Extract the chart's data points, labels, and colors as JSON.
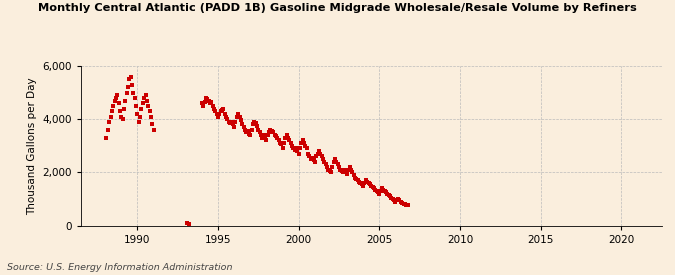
{
  "title": "Monthly Central Atlantic (PADD 1B) Gasoline Midgrade Wholesale/Resale Volume by Refiners",
  "ylabel": "Thousand Gallons per Day",
  "source": "Source: U.S. Energy Information Administration",
  "background_color": "#faeedd",
  "marker_color": "#cc0000",
  "xlim": [
    1986.5,
    2022.5
  ],
  "ylim": [
    0,
    6000
  ],
  "yticks": [
    0,
    2000,
    4000,
    6000
  ],
  "xticks": [
    1990,
    1995,
    2000,
    2005,
    2010,
    2015,
    2020
  ],
  "data_points": [
    [
      1988.08,
      3300
    ],
    [
      1988.17,
      3600
    ],
    [
      1988.25,
      3900
    ],
    [
      1988.33,
      4100
    ],
    [
      1988.42,
      4300
    ],
    [
      1988.5,
      4500
    ],
    [
      1988.58,
      4700
    ],
    [
      1988.67,
      4800
    ],
    [
      1988.75,
      4900
    ],
    [
      1988.83,
      4600
    ],
    [
      1988.92,
      4300
    ],
    [
      1989.0,
      4100
    ],
    [
      1989.08,
      4000
    ],
    [
      1989.17,
      4400
    ],
    [
      1989.25,
      4700
    ],
    [
      1989.33,
      5000
    ],
    [
      1989.42,
      5200
    ],
    [
      1989.5,
      5500
    ],
    [
      1989.58,
      5600
    ],
    [
      1989.67,
      5300
    ],
    [
      1989.75,
      5000
    ],
    [
      1989.83,
      4800
    ],
    [
      1989.92,
      4500
    ],
    [
      1990.0,
      4200
    ],
    [
      1990.08,
      3900
    ],
    [
      1990.17,
      4100
    ],
    [
      1990.25,
      4400
    ],
    [
      1990.33,
      4600
    ],
    [
      1990.42,
      4800
    ],
    [
      1990.5,
      4900
    ],
    [
      1990.58,
      4700
    ],
    [
      1990.67,
      4500
    ],
    [
      1990.75,
      4300
    ],
    [
      1990.83,
      4100
    ],
    [
      1990.92,
      3800
    ],
    [
      1991.0,
      3600
    ],
    [
      1993.08,
      100
    ],
    [
      1993.17,
      50
    ],
    [
      1994.0,
      4600
    ],
    [
      1994.08,
      4500
    ],
    [
      1994.17,
      4650
    ],
    [
      1994.25,
      4800
    ],
    [
      1994.33,
      4750
    ],
    [
      1994.42,
      4700
    ],
    [
      1994.5,
      4600
    ],
    [
      1994.58,
      4650
    ],
    [
      1994.67,
      4500
    ],
    [
      1994.75,
      4400
    ],
    [
      1994.83,
      4300
    ],
    [
      1994.92,
      4200
    ],
    [
      1995.0,
      4100
    ],
    [
      1995.08,
      4200
    ],
    [
      1995.17,
      4300
    ],
    [
      1995.25,
      4350
    ],
    [
      1995.33,
      4400
    ],
    [
      1995.42,
      4200
    ],
    [
      1995.5,
      4100
    ],
    [
      1995.58,
      4000
    ],
    [
      1995.67,
      3900
    ],
    [
      1995.75,
      3850
    ],
    [
      1995.83,
      3900
    ],
    [
      1995.92,
      3800
    ],
    [
      1996.0,
      3700
    ],
    [
      1996.08,
      3900
    ],
    [
      1996.17,
      4100
    ],
    [
      1996.25,
      4200
    ],
    [
      1996.33,
      4100
    ],
    [
      1996.42,
      3950
    ],
    [
      1996.5,
      3800
    ],
    [
      1996.58,
      3700
    ],
    [
      1996.67,
      3600
    ],
    [
      1996.75,
      3500
    ],
    [
      1996.83,
      3550
    ],
    [
      1996.92,
      3450
    ],
    [
      1997.0,
      3400
    ],
    [
      1997.08,
      3600
    ],
    [
      1997.17,
      3800
    ],
    [
      1997.25,
      3900
    ],
    [
      1997.33,
      3850
    ],
    [
      1997.42,
      3750
    ],
    [
      1997.5,
      3600
    ],
    [
      1997.58,
      3500
    ],
    [
      1997.67,
      3400
    ],
    [
      1997.75,
      3300
    ],
    [
      1997.83,
      3400
    ],
    [
      1997.92,
      3300
    ],
    [
      1998.0,
      3200
    ],
    [
      1998.08,
      3400
    ],
    [
      1998.17,
      3500
    ],
    [
      1998.25,
      3600
    ],
    [
      1998.33,
      3550
    ],
    [
      1998.42,
      3500
    ],
    [
      1998.5,
      3400
    ],
    [
      1998.58,
      3350
    ],
    [
      1998.67,
      3300
    ],
    [
      1998.75,
      3200
    ],
    [
      1998.83,
      3100
    ],
    [
      1998.92,
      3050
    ],
    [
      1999.0,
      2900
    ],
    [
      1999.08,
      3100
    ],
    [
      1999.17,
      3300
    ],
    [
      1999.25,
      3400
    ],
    [
      1999.33,
      3300
    ],
    [
      1999.42,
      3200
    ],
    [
      1999.5,
      3100
    ],
    [
      1999.58,
      3000
    ],
    [
      1999.67,
      2900
    ],
    [
      1999.75,
      2850
    ],
    [
      1999.83,
      2900
    ],
    [
      1999.92,
      2800
    ],
    [
      2000.0,
      2700
    ],
    [
      2000.08,
      2900
    ],
    [
      2000.17,
      3100
    ],
    [
      2000.25,
      3200
    ],
    [
      2000.33,
      3100
    ],
    [
      2000.42,
      3000
    ],
    [
      2000.5,
      2900
    ],
    [
      2000.58,
      2700
    ],
    [
      2000.67,
      2600
    ],
    [
      2000.75,
      2500
    ],
    [
      2000.83,
      2550
    ],
    [
      2000.92,
      2450
    ],
    [
      2001.0,
      2400
    ],
    [
      2001.08,
      2600
    ],
    [
      2001.17,
      2700
    ],
    [
      2001.25,
      2800
    ],
    [
      2001.33,
      2700
    ],
    [
      2001.42,
      2600
    ],
    [
      2001.5,
      2500
    ],
    [
      2001.58,
      2400
    ],
    [
      2001.67,
      2300
    ],
    [
      2001.75,
      2200
    ],
    [
      2001.83,
      2100
    ],
    [
      2001.92,
      2050
    ],
    [
      2002.0,
      2000
    ],
    [
      2002.08,
      2200
    ],
    [
      2002.17,
      2400
    ],
    [
      2002.25,
      2500
    ],
    [
      2002.33,
      2400
    ],
    [
      2002.42,
      2300
    ],
    [
      2002.5,
      2200
    ],
    [
      2002.58,
      2100
    ],
    [
      2002.67,
      2050
    ],
    [
      2002.75,
      2000
    ],
    [
      2002.83,
      2100
    ],
    [
      2002.92,
      2000
    ],
    [
      2003.0,
      1950
    ],
    [
      2003.08,
      2100
    ],
    [
      2003.17,
      2200
    ],
    [
      2003.25,
      2100
    ],
    [
      2003.33,
      2000
    ],
    [
      2003.42,
      1900
    ],
    [
      2003.5,
      1800
    ],
    [
      2003.58,
      1750
    ],
    [
      2003.67,
      1700
    ],
    [
      2003.75,
      1650
    ],
    [
      2003.83,
      1600
    ],
    [
      2003.92,
      1550
    ],
    [
      2004.0,
      1500
    ],
    [
      2004.08,
      1600
    ],
    [
      2004.17,
      1700
    ],
    [
      2004.25,
      1650
    ],
    [
      2004.33,
      1600
    ],
    [
      2004.42,
      1550
    ],
    [
      2004.5,
      1500
    ],
    [
      2004.58,
      1450
    ],
    [
      2004.67,
      1400
    ],
    [
      2004.75,
      1350
    ],
    [
      2004.83,
      1300
    ],
    [
      2004.92,
      1250
    ],
    [
      2005.0,
      1200
    ],
    [
      2005.08,
      1300
    ],
    [
      2005.17,
      1400
    ],
    [
      2005.25,
      1350
    ],
    [
      2005.33,
      1300
    ],
    [
      2005.42,
      1250
    ],
    [
      2005.5,
      1200
    ],
    [
      2005.58,
      1150
    ],
    [
      2005.67,
      1100
    ],
    [
      2005.75,
      1050
    ],
    [
      2005.83,
      1000
    ],
    [
      2005.92,
      950
    ],
    [
      2006.0,
      900
    ],
    [
      2006.08,
      950
    ],
    [
      2006.17,
      1000
    ],
    [
      2006.25,
      950
    ],
    [
      2006.33,
      900
    ],
    [
      2006.42,
      850
    ],
    [
      2006.5,
      820
    ],
    [
      2006.58,
      800
    ],
    [
      2006.67,
      780
    ],
    [
      2006.75,
      760
    ]
  ]
}
